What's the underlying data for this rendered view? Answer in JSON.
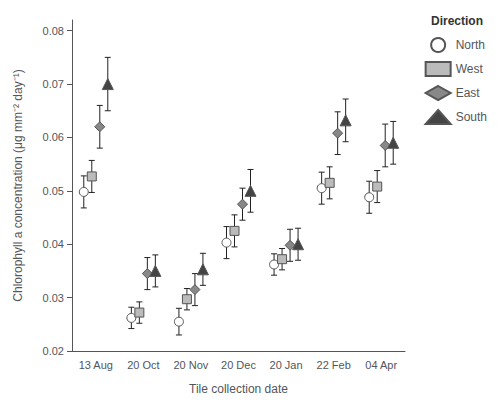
{
  "chart_data": {
    "type": "scatter",
    "xlabel": "Tile collection date",
    "ylabel": "Chlorophyll a concentration (μg mm⁻² day⁻¹)",
    "legend_title": "Direction",
    "categories": [
      "13 Aug",
      "20 Oct",
      "20 Nov",
      "20 Dec",
      "20 Jan",
      "22 Feb",
      "04 Apr"
    ],
    "series": [
      {
        "name": "North",
        "color": "white",
        "marker": "circle",
        "values": [
          0.0498,
          0.0262,
          0.0255,
          0.0403,
          0.0362,
          0.0505,
          0.0488
        ],
        "errors": [
          0.003,
          0.002,
          0.0025,
          0.003,
          0.002,
          0.003,
          0.003
        ]
      },
      {
        "name": "West",
        "color": "#bbbbbb",
        "marker": "square",
        "values": [
          0.0527,
          0.0272,
          0.0297,
          0.0425,
          0.0372,
          0.0515,
          0.0508
        ],
        "errors": [
          0.003,
          0.002,
          0.002,
          0.003,
          0.002,
          0.003,
          0.003
        ]
      },
      {
        "name": "East",
        "color": "#888888",
        "marker": "diamond",
        "values": [
          0.062,
          0.0345,
          0.0315,
          0.0475,
          0.0398,
          0.0608,
          0.0585
        ],
        "errors": [
          0.004,
          0.003,
          0.003,
          0.003,
          0.003,
          0.004,
          0.004
        ]
      },
      {
        "name": "South",
        "color": "#444444",
        "marker": "triangle",
        "values": [
          0.07,
          0.035,
          0.0353,
          0.05,
          0.04,
          0.0632,
          0.059
        ],
        "errors": [
          0.005,
          0.003,
          0.003,
          0.004,
          0.003,
          0.004,
          0.004
        ]
      }
    ],
    "ylim": [
      0.02,
      0.082
    ],
    "yticks": [
      0.02,
      0.03,
      0.04,
      0.05,
      0.06,
      0.07,
      0.08
    ],
    "grid": false,
    "legend": "upper right"
  }
}
